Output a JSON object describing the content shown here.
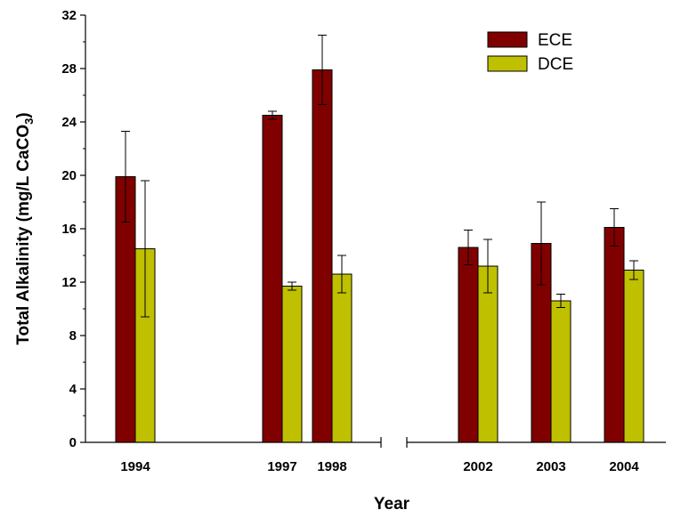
{
  "chart_data": {
    "type": "bar",
    "title": "",
    "xlabel": "Year",
    "ylabel": {
      "main": "Total Alkalinity (mg/L CaCO",
      "subscript": "3",
      "close": ")"
    },
    "ylim": [
      0,
      32
    ],
    "yticks": [
      0,
      4,
      8,
      12,
      16,
      20,
      24,
      28,
      32
    ],
    "broken_x_axis": true,
    "categories": [
      "1994",
      "1997",
      "1998",
      "2002",
      "2003",
      "2004"
    ],
    "series": [
      {
        "name": "ECE",
        "color": "#800000",
        "values": [
          19.9,
          24.5,
          27.9,
          14.6,
          14.9,
          16.1
        ],
        "errors": [
          3.4,
          0.3,
          2.6,
          1.3,
          3.1,
          1.4
        ]
      },
      {
        "name": "DCE",
        "color": "#BFC000",
        "values": [
          14.5,
          11.7,
          12.6,
          13.2,
          10.6,
          12.9
        ],
        "errors": [
          5.1,
          0.3,
          1.4,
          2.0,
          0.5,
          0.7
        ]
      }
    ],
    "legend_position": "top-right",
    "grid": false
  }
}
